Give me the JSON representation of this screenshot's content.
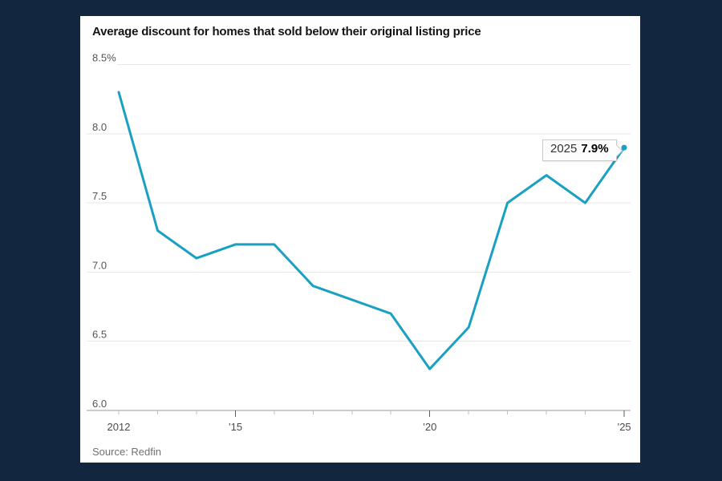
{
  "colors": {
    "page_background": "#132640",
    "card_background": "#ffffff",
    "line": "#19a0c3",
    "grid": "#e7e7e7",
    "axis": "#9a9a9a"
  },
  "card": {
    "title": "Average discount for homes that sold below their original listing price",
    "source": "Source: Redfin"
  },
  "annotation": {
    "year": "2025",
    "value": "7.9%"
  },
  "chart_data": {
    "type": "line",
    "title": "Average discount for homes that sold below their original listing price",
    "series_name": "Average discount (%)",
    "x": [
      2012,
      2013,
      2014,
      2015,
      2016,
      2017,
      2018,
      2019,
      2020,
      2021,
      2022,
      2023,
      2024,
      2025
    ],
    "values": [
      8.3,
      7.3,
      7.1,
      7.2,
      7.2,
      6.9,
      6.8,
      6.7,
      6.3,
      6.6,
      7.5,
      7.7,
      7.5,
      7.9
    ],
    "ylim": [
      6.0,
      8.5
    ],
    "yticks": [
      6.0,
      6.5,
      7.0,
      7.5,
      8.0,
      8.5
    ],
    "ytick_labels": [
      "6.0",
      "6.5",
      "7.0",
      "7.5",
      "8.0",
      "8.5%"
    ],
    "xticks_labeled": [
      {
        "year": 2012,
        "label": "2012"
      },
      {
        "year": 2015,
        "label": "’15"
      },
      {
        "year": 2020,
        "label": "’20"
      },
      {
        "year": 2025,
        "label": "’25"
      }
    ],
    "major_tick_years": [
      2015,
      2020,
      2025
    ],
    "grid": true,
    "legend": "none",
    "line_color": "#19a0c3",
    "end_marker": true,
    "annotation": "2025 7.9%",
    "source": "Source: Redfin"
  }
}
